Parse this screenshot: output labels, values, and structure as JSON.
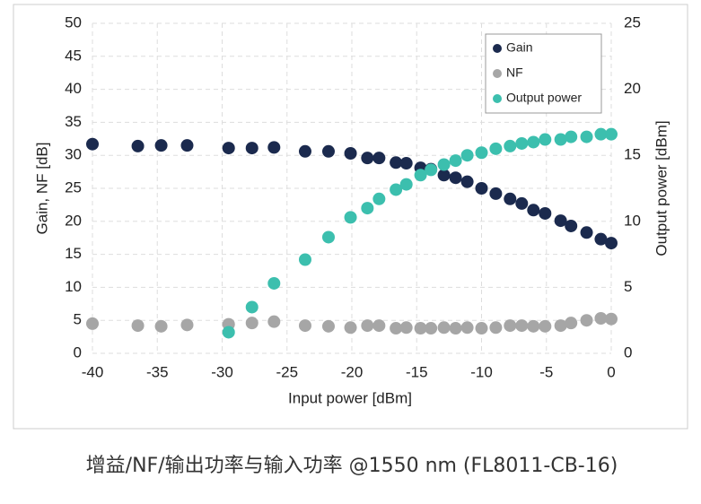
{
  "chart_data": {
    "type": "scatter",
    "caption": "增益/NF/输出功率与输入功率 @1550 nm (FL8011-CB-16)",
    "x_label": "Input power [dBm]",
    "y_label": "Gain, NF [dB]",
    "y2_label": "Output power [dBm]",
    "x": [
      -40,
      -36.5,
      -34.7,
      -32.7,
      -29.5,
      -27.7,
      -26.0,
      -23.6,
      -21.8,
      -20.1,
      -18.8,
      -17.9,
      -16.6,
      -15.8,
      -14.7,
      -13.9,
      -12.9,
      -12.0,
      -11.1,
      -10.0,
      -8.9,
      -7.8,
      -6.9,
      -6.0,
      -5.1,
      -3.9,
      -3.1,
      -1.9,
      -0.8,
      0
    ],
    "series": [
      {
        "name": "Gain",
        "color": "#1b2a4e",
        "axis": "y",
        "values": [
          31.7,
          31.4,
          31.5,
          31.5,
          31.1,
          31.1,
          31.2,
          30.6,
          30.6,
          30.3,
          29.6,
          29.6,
          28.9,
          28.8,
          28.1,
          27.9,
          27.0,
          26.6,
          26.0,
          25.0,
          24.2,
          23.4,
          22.7,
          21.7,
          21.2,
          20.1,
          19.3,
          18.3,
          17.3,
          16.7
        ]
      },
      {
        "name": "NF",
        "color": "#a6a6a6",
        "axis": "y",
        "values": [
          4.5,
          4.2,
          4.1,
          4.3,
          4.4,
          4.6,
          4.8,
          4.2,
          4.1,
          3.9,
          4.2,
          4.2,
          3.8,
          3.9,
          3.8,
          3.8,
          3.9,
          3.8,
          3.9,
          3.8,
          3.9,
          4.2,
          4.2,
          4.1,
          4.1,
          4.2,
          4.6,
          5.0,
          5.3,
          5.2
        ]
      },
      {
        "name": "Output power",
        "color": "#3cbfae",
        "axis": "y2",
        "values": [
          null,
          null,
          null,
          null,
          1.6,
          3.5,
          5.3,
          7.1,
          8.8,
          10.3,
          11.0,
          11.7,
          12.4,
          12.8,
          13.5,
          13.9,
          14.3,
          14.6,
          15.0,
          15.2,
          15.5,
          15.7,
          15.9,
          16.0,
          16.2,
          16.2,
          16.4,
          16.4,
          16.6,
          16.6
        ]
      }
    ],
    "xlim": [
      -40,
      0
    ],
    "xticks": [
      -40,
      -35,
      -30,
      -25,
      -20,
      -15,
      -10,
      -5,
      0
    ],
    "ylim": [
      0,
      50
    ],
    "yticks": [
      0,
      5,
      10,
      15,
      20,
      25,
      30,
      35,
      40,
      45,
      50
    ],
    "y2lim": [
      0,
      25
    ],
    "y2ticks": [
      0,
      5,
      10,
      15,
      20,
      25
    ],
    "grid": true,
    "legend": "top-right"
  }
}
